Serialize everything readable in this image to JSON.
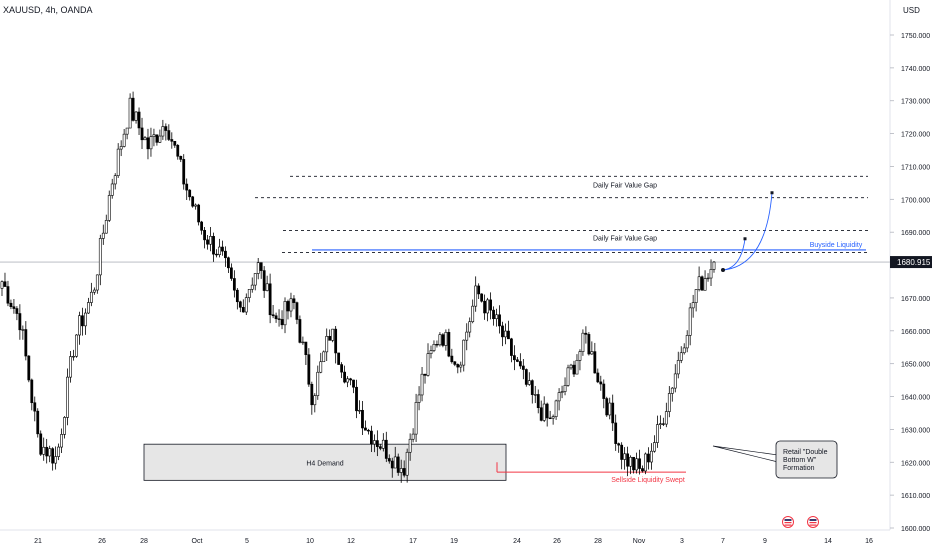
{
  "header": {
    "symbol_line": "XAUUSD, 4h, OANDA"
  },
  "price_axis": {
    "currency": "USD",
    "ticks": [
      "1600.000",
      "1610.000",
      "1620.000",
      "1630.000",
      "1640.000",
      "1650.000",
      "1660.000",
      "1670.000",
      "1680.000",
      "1690.000",
      "1700.000",
      "1710.000",
      "1720.000",
      "1730.000",
      "1740.000",
      "1750.000"
    ]
  },
  "colors": {
    "up": "#ffffff",
    "down": "#000000",
    "buyside": "#2962ff",
    "sellside": "#f23645",
    "zone_fill": "#e6e6e6",
    "price_tag": "#131722"
  },
  "annotations": {
    "fvg_upper_label": "Daily Fair Value Gap",
    "fvg_lower_label": "Daily Fair Value Gap",
    "buyside_label": "Buyside Liquidity",
    "sellside_label": "Sellside Liquidity Swept",
    "demand_label": "H4 Demand",
    "callout_text": "Retail \"Double Bottom W\" Formation",
    "callout_lines": [
      "Retail \"Double",
      "Bottom W\"",
      "Formation"
    ],
    "event_icons": [
      "us-flag-icon",
      "us-flag-icon"
    ]
  },
  "chart_data": {
    "type": "candlestick",
    "symbol": "XAUUSD",
    "timeframe": "4h",
    "broker": "OANDA",
    "current_price": 1680.915,
    "current_price_label": "1680.915",
    "ylim": [
      1600,
      1755
    ],
    "x_ticks": [
      "21",
      "26",
      "28",
      "Oct",
      "5",
      "10",
      "12",
      "17",
      "19",
      "24",
      "26",
      "28",
      "Nov",
      "3",
      "7",
      "9",
      "14",
      "16"
    ],
    "levels": {
      "fvg_upper_top": 1707,
      "fvg_upper_bottom": 1700.5,
      "fvg_lower_top": 1690.5,
      "fvg_lower_bottom": 1683.8,
      "buyside_liquidity": 1684.6,
      "sellside_liquidity": 1617,
      "h4_demand_top": 1625.5,
      "h4_demand_bottom": 1614.5
    },
    "projected_path": [
      1678.5,
      1688,
      1702
    ],
    "series_keypoints": [
      1675,
      1663,
      1626,
      1621,
      1658,
      1672,
      1705,
      1728,
      1716,
      1724,
      1705,
      1690,
      1683,
      1666,
      1680,
      1663,
      1668,
      1640,
      1660,
      1644,
      1630,
      1624,
      1618,
      1645,
      1660,
      1650,
      1672,
      1663,
      1652,
      1640,
      1632,
      1646,
      1658,
      1640,
      1622,
      1617,
      1630,
      1650,
      1672,
      1680.9
    ]
  }
}
